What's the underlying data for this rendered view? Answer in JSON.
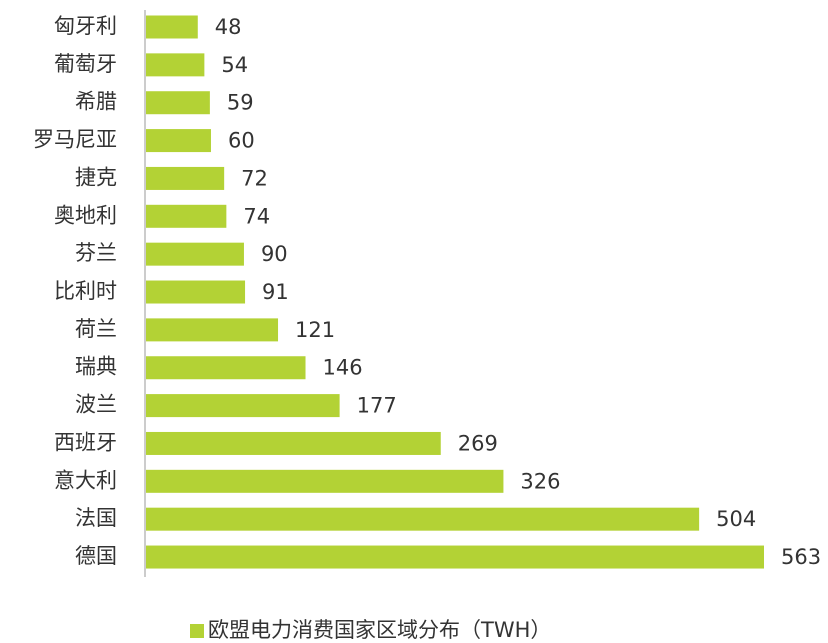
{
  "chart_data": {
    "type": "barh",
    "categories": [
      "匈牙利",
      "葡萄牙",
      "希腊",
      "罗马尼亚",
      "捷克",
      "奥地利",
      "芬兰",
      "比利时",
      "荷兰",
      "瑞典",
      "波兰",
      "西班牙",
      "意大利",
      "法国",
      "德国"
    ],
    "series": [
      {
        "name": "欧盟电力消费国家区域分布（TWH）",
        "color": "#b3d235",
        "values": [
          48,
          54,
          59,
          60,
          72,
          74,
          90,
          91,
          121,
          146,
          177,
          269,
          326,
          504,
          563
        ]
      }
    ],
    "legend": "bottom"
  }
}
